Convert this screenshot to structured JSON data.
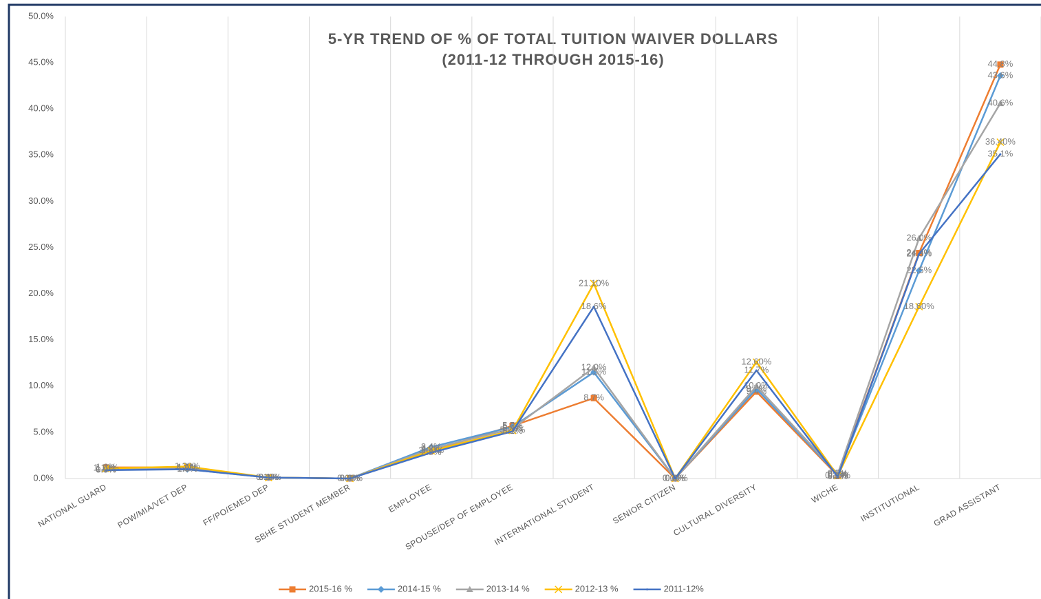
{
  "chart_data": {
    "type": "line",
    "title": "5-YR TREND OF % OF TOTAL TUITION WAIVER DOLLARS",
    "subtitle": "(2011-12 THROUGH 2015-16)",
    "categories": [
      "NATIONAL GUARD",
      "POW/MIA/VET DEP",
      "FF/PO/EMED DEP",
      "SBHE STUDENT MEMBER",
      "EMPLOYEE",
      "SPOUSE/DEP OF EMPLOYEE",
      "INTERNATIONAL STUDENT",
      "SENIOR CITIZEN",
      "CULTURAL DIVERSITY",
      "WICHE",
      "INSTITUTIONAL",
      "GRAD ASSISTANT"
    ],
    "ylim": [
      0,
      50
    ],
    "yticks": [
      {
        "value": 0,
        "label": "0.0%"
      },
      {
        "value": 5,
        "label": "5.0%"
      },
      {
        "value": 10,
        "label": "10.0%"
      },
      {
        "value": 15,
        "label": "15.0%"
      },
      {
        "value": 20,
        "label": "20.0%"
      },
      {
        "value": 25,
        "label": "25.0%"
      },
      {
        "value": 30,
        "label": "30.0%"
      },
      {
        "value": 35,
        "label": "35.0%"
      },
      {
        "value": 40,
        "label": "40.0%"
      },
      {
        "value": 45,
        "label": "45.0%"
      },
      {
        "value": 50,
        "label": "50.0%"
      }
    ],
    "grid": "vertical",
    "legend": "bottom",
    "series": [
      {
        "name": "2015-16 %",
        "color": "#ed7d31",
        "marker": "square",
        "values": [
          1.2,
          1.2,
          0.1,
          0.0,
          3.0,
          5.7,
          8.7,
          0.0,
          9.4,
          0.3,
          24.4,
          44.8
        ],
        "value_labels": [
          "1.2%",
          "1.2%",
          "0.1%",
          "0.0%",
          "3.0%",
          "5.7%",
          "8.7%",
          "0.0%",
          "9.4%",
          "0.3%",
          "24.4%",
          "44.8%"
        ]
      },
      {
        "name": "2014-15 %",
        "color": "#5b9bd5",
        "marker": "diamond",
        "values": [
          1.0,
          1.0,
          0.1,
          0.0,
          3.4,
          5.6,
          11.5,
          0.0,
          9.7,
          0.4,
          22.5,
          43.6
        ],
        "value_labels": [
          "1.0%",
          "1.0%",
          "0.1%",
          "0.0%",
          "3.4%",
          "5.6%",
          "11.5%",
          "0.0%",
          "9.7%",
          "0.4%",
          "22.5%",
          "43.6%"
        ]
      },
      {
        "name": "2013-14 %",
        "color": "#a5a5a5",
        "marker": "triangle",
        "values": [
          1.0,
          1.1,
          0.1,
          0.0,
          3.2,
          5.4,
          12.0,
          0.0,
          10.0,
          0.5,
          26.0,
          40.6
        ],
        "value_labels": [
          "1.0%",
          "1.1%",
          "0.1%",
          "0.0%",
          "3.2%",
          "5.4%",
          "12.0%",
          "0.0%",
          "10.0%",
          "0.5%",
          "26.0%",
          "40.6%"
        ]
      },
      {
        "name": "2012-13 %",
        "color": "#ffc000",
        "marker": "x",
        "values": [
          1.1,
          1.3,
          0.1,
          0.0,
          3.0,
          5.2,
          21.1,
          0.0,
          12.6,
          0.3,
          18.6,
          36.4
        ],
        "value_labels": [
          "1.10%",
          "1.30%",
          "0.10%",
          "0.00%",
          "3.00%",
          "5.20%",
          "21.10%",
          "0.00%",
          "12.60%",
          "0.30%",
          "18.60%",
          "36.40%"
        ]
      },
      {
        "name": "2011-12%",
        "color": "#4472c4",
        "marker": "none",
        "values": [
          0.9,
          1.0,
          0.1,
          0.0,
          2.8,
          5.1,
          18.6,
          0.0,
          11.7,
          0.2,
          24.3,
          35.1
        ],
        "value_labels": [
          "0.9%",
          "1.0%",
          "0.1%",
          "0.0%",
          "2.8%",
          "5.1%",
          "18.6%",
          "0.0%",
          "11.7%",
          "0.2%",
          "24.3%",
          "35.1%"
        ]
      }
    ]
  }
}
